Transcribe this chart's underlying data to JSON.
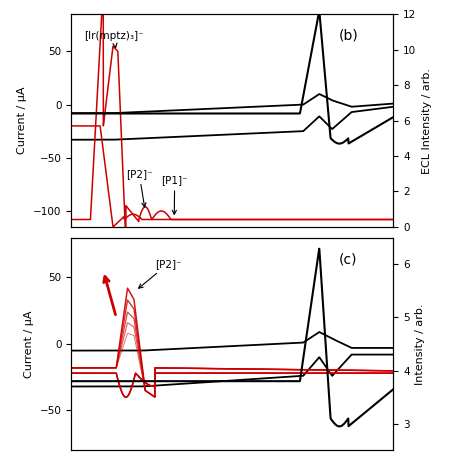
{
  "panel_b": {
    "label": "(b)",
    "cv_ylim": [
      -115,
      85
    ],
    "cv_yticks": [
      -100,
      -50,
      0,
      50
    ],
    "ecl_ylim": [
      0,
      12
    ],
    "ecl_yticks": [
      0,
      2,
      4,
      6,
      8,
      10,
      12
    ],
    "annotation_ir": "[Ir(mptz)₃]⁻",
    "annotation_p2": "[P2]⁻",
    "annotation_p1": "[P1]⁻"
  },
  "panel_c": {
    "label": "(c)",
    "cv_ylim": [
      -80,
      80
    ],
    "cv_yticks": [
      -50,
      0,
      50
    ],
    "ecl_ylim": [
      2.5,
      6.5
    ],
    "ecl_yticks": [
      3,
      4,
      5,
      6
    ],
    "annotation_p2": "[P2]⁻"
  },
  "ylabel_left": "Current / μA",
  "ylabel_right_b": "ECL Intensity / arb.",
  "ylabel_right_c": "Intensity / arb.",
  "cv_color": "#cc0000",
  "ecl_color": "#000000",
  "bg_color": "#ffffff"
}
